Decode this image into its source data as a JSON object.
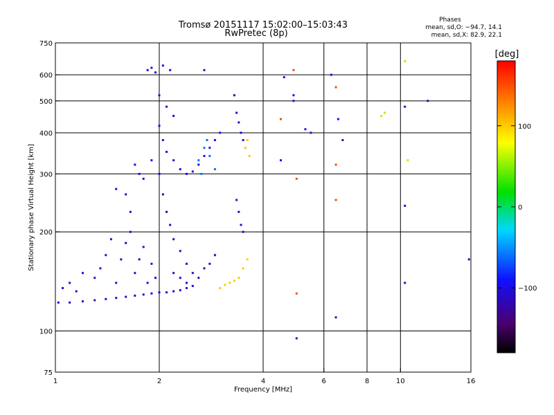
{
  "chart_data": {
    "type": "scatter",
    "title": "Tromsø 20151117 15:02:00–15:03:43",
    "subtitle": "RwPretec (8p)",
    "stats": {
      "heading": "Phases",
      "line1": "mean, sd,O: −94.7, 14.1",
      "line2": "mean, sd,X:  82.9, 22.1"
    },
    "xlabel": "Frequency [MHz]",
    "ylabel": "Stationary phase Virtual Height [km]",
    "x_scale": "log",
    "y_scale": "log",
    "xlim": [
      1,
      16
    ],
    "ylim": [
      75,
      750
    ],
    "x_ticks": [
      1,
      2,
      4,
      6,
      8,
      10,
      16
    ],
    "x_tick_labels": [
      "1",
      "2",
      "4",
      "6",
      "8",
      "10",
      "16"
    ],
    "y_ticks": [
      75,
      100,
      200,
      300,
      400,
      500,
      600,
      750
    ],
    "y_tick_labels": [
      "75",
      "100",
      "200",
      "300",
      "400",
      "500",
      "600",
      "750"
    ],
    "x_gridlines": [
      2,
      4,
      6,
      8,
      10
    ],
    "y_gridlines": [
      100,
      200,
      300,
      400,
      500,
      600
    ],
    "grid": true,
    "colorbar": {
      "label": "[deg]",
      "range": [
        -180,
        180
      ],
      "ticks": [
        100,
        0,
        -100
      ],
      "tick_labels": [
        "100",
        "0",
        "−100"
      ]
    },
    "series": [
      {
        "phase": -105,
        "points": [
          [
            1.02,
            122
          ],
          [
            1.1,
            122
          ],
          [
            1.2,
            123
          ],
          [
            1.3,
            124
          ],
          [
            1.4,
            125
          ],
          [
            1.5,
            126
          ],
          [
            1.6,
            127
          ],
          [
            1.7,
            128
          ],
          [
            1.8,
            129
          ],
          [
            1.9,
            130
          ],
          [
            2.0,
            131
          ],
          [
            2.1,
            131
          ],
          [
            2.2,
            132
          ],
          [
            2.3,
            133
          ],
          [
            2.4,
            135
          ],
          [
            2.5,
            137
          ],
          [
            1.05,
            135
          ],
          [
            1.1,
            140
          ],
          [
            1.15,
            132
          ],
          [
            1.2,
            150
          ],
          [
            1.3,
            145
          ],
          [
            1.35,
            155
          ],
          [
            1.4,
            170
          ],
          [
            1.45,
            190
          ],
          [
            1.5,
            140
          ],
          [
            1.55,
            165
          ],
          [
            1.6,
            185
          ],
          [
            1.65,
            200
          ],
          [
            1.7,
            150
          ],
          [
            1.75,
            165
          ],
          [
            1.8,
            180
          ],
          [
            1.85,
            140
          ],
          [
            1.9,
            160
          ],
          [
            1.95,
            145
          ]
        ]
      },
      {
        "phase": -100,
        "points": [
          [
            1.85,
            620
          ],
          [
            1.9,
            630
          ],
          [
            1.95,
            610
          ],
          [
            2.05,
            640
          ],
          [
            2.15,
            620
          ],
          [
            2.7,
            620
          ],
          [
            2.0,
            520
          ],
          [
            2.1,
            480
          ],
          [
            2.2,
            450
          ],
          [
            2.0,
            420
          ],
          [
            2.05,
            380
          ],
          [
            2.1,
            350
          ],
          [
            2.2,
            330
          ],
          [
            2.3,
            310
          ],
          [
            2.4,
            300
          ],
          [
            2.5,
            305
          ],
          [
            2.6,
            320
          ],
          [
            2.7,
            340
          ],
          [
            2.8,
            360
          ],
          [
            2.9,
            380
          ],
          [
            3.0,
            400
          ],
          [
            1.7,
            320
          ],
          [
            1.75,
            300
          ],
          [
            1.8,
            290
          ],
          [
            1.9,
            330
          ],
          [
            2.0,
            300
          ],
          [
            1.6,
            260
          ],
          [
            1.5,
            270
          ],
          [
            1.65,
            230
          ]
        ]
      },
      {
        "phase": -110,
        "points": [
          [
            2.05,
            260
          ],
          [
            2.1,
            230
          ],
          [
            2.15,
            210
          ],
          [
            2.2,
            190
          ],
          [
            2.3,
            175
          ],
          [
            2.4,
            160
          ],
          [
            2.5,
            150
          ],
          [
            2.6,
            145
          ],
          [
            2.7,
            155
          ],
          [
            2.8,
            160
          ],
          [
            2.9,
            170
          ],
          [
            2.2,
            150
          ],
          [
            2.3,
            145
          ],
          [
            2.4,
            140
          ],
          [
            3.35,
            250
          ],
          [
            3.4,
            230
          ],
          [
            3.45,
            210
          ],
          [
            3.5,
            200
          ],
          [
            3.3,
            520
          ],
          [
            3.35,
            460
          ],
          [
            3.4,
            430
          ],
          [
            3.45,
            400
          ],
          [
            3.5,
            380
          ]
        ]
      },
      {
        "phase": -60,
        "points": [
          [
            2.6,
            330
          ],
          [
            2.7,
            360
          ],
          [
            2.8,
            340
          ],
          [
            2.9,
            310
          ],
          [
            2.75,
            380
          ],
          [
            2.65,
            300
          ]
        ]
      },
      {
        "phase": 100,
        "points": [
          [
            3.0,
            135
          ],
          [
            3.1,
            138
          ],
          [
            3.2,
            140
          ],
          [
            3.3,
            142
          ],
          [
            3.4,
            145
          ],
          [
            3.5,
            155
          ],
          [
            3.6,
            165
          ],
          [
            3.55,
            360
          ],
          [
            3.6,
            380
          ],
          [
            3.65,
            340
          ]
        ]
      },
      {
        "phase": 150,
        "points": [
          [
            4.5,
            440
          ],
          [
            4.9,
            620
          ],
          [
            5.0,
            290
          ],
          [
            6.5,
            250
          ],
          [
            6.5,
            550
          ],
          [
            5.0,
            130
          ],
          [
            6.5,
            320
          ]
        ]
      },
      {
        "phase": -95,
        "points": [
          [
            4.5,
            330
          ],
          [
            4.6,
            590
          ],
          [
            4.9,
            500
          ],
          [
            5.3,
            410
          ],
          [
            6.3,
            600
          ],
          [
            6.6,
            440
          ],
          [
            4.9,
            520
          ],
          [
            5.5,
            400
          ]
        ]
      },
      {
        "phase": -120,
        "points": [
          [
            5.0,
            95
          ],
          [
            6.5,
            110
          ],
          [
            6.8,
            380
          ],
          [
            10.3,
            480
          ],
          [
            10.3,
            240
          ],
          [
            12.0,
            500
          ],
          [
            15.8,
            165
          ],
          [
            10.3,
            140
          ]
        ]
      },
      {
        "phase": 60,
        "points": [
          [
            8.8,
            450
          ],
          [
            9.0,
            460
          ],
          [
            10.3,
            660
          ],
          [
            10.5,
            330
          ]
        ]
      }
    ]
  }
}
